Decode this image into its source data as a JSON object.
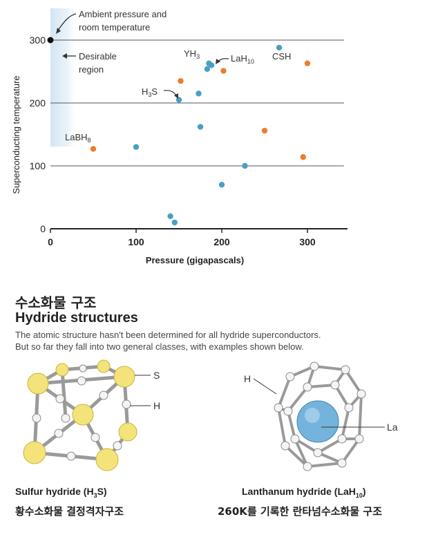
{
  "chart_data": {
    "type": "scatter",
    "xlabel": "Pressure (gigapascals)",
    "ylabel": "Superconducting temperature",
    "xlim": [
      0,
      350
    ],
    "ylim": [
      0,
      330
    ],
    "xticks": [
      0,
      100,
      200,
      300
    ],
    "yticks": [
      0,
      100,
      200,
      300
    ],
    "grid": "horizontal",
    "colors": {
      "blue": "#4a9fc3",
      "orange": "#ec7d2d",
      "region": "#cfe3f2"
    },
    "series": [
      {
        "color": "blue",
        "x": [
          100,
          140,
          145,
          150,
          173,
          175,
          185,
          183,
          188,
          200,
          227,
          267
        ],
        "y": [
          130,
          20,
          10,
          205,
          215,
          162,
          263,
          254,
          260,
          70,
          100,
          288
        ]
      },
      {
        "color": "orange",
        "x": [
          50,
          152,
          202,
          250,
          300,
          295
        ],
        "y": [
          127,
          235,
          251,
          156,
          263,
          114
        ]
      }
    ],
    "reference_point": {
      "x": 0,
      "y": 300
    },
    "annotations": {
      "ambient_line1": "Ambient pressure and",
      "ambient_line2": "room temperature",
      "desirable_line1": "Desirable",
      "desirable_line2": "region",
      "yh3": "YH",
      "yh3_sub": "3",
      "lah10": "LaH",
      "lah10_sub": "10",
      "csh": "CSH",
      "h3s_pre": "H",
      "h3s_sub": "3",
      "h3s_post": "S",
      "labh8": "LaBH",
      "labh8_sub": "8"
    }
  },
  "section": {
    "title_ko": "수소화물 구조",
    "title_en": "Hydride structures",
    "desc_line1": "The atomic structure hasn't been determined for all hydride superconductors.",
    "desc_line2": "But so far they fall into two general classes, with examples shown below."
  },
  "sulfur": {
    "label_s": "S",
    "label_h": "H",
    "caption_pre": "Sulfur hydride (H",
    "caption_sub": "3",
    "caption_post": "S)",
    "caption_ko": "황수소화물 결정격자구조"
  },
  "lanthanum": {
    "label_h": "H",
    "label_la": "La",
    "caption_pre": "Lanthanum hydride (LaH",
    "caption_sub": "10",
    "caption_post": ")",
    "caption_ko": "260K를 기록한 란타넘수소화물 구조"
  }
}
